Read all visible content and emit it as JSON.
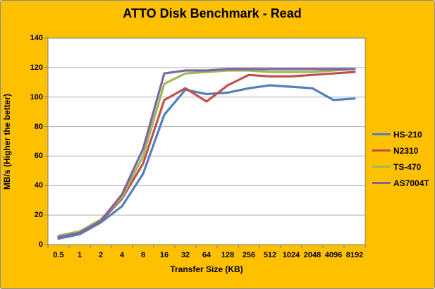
{
  "chart_data": {
    "type": "line",
    "title": "ATTO Disk Benchmark - Read",
    "xlabel": "Transfer Size (KB)",
    "ylabel": "MB/s (Higher the better)",
    "categories": [
      "0.5",
      "1",
      "2",
      "4",
      "8",
      "16",
      "32",
      "64",
      "128",
      "256",
      "512",
      "1024",
      "2048",
      "4096",
      "8192"
    ],
    "series": [
      {
        "name": "HS-210",
        "color": "#4F81BD",
        "values": [
          4,
          7,
          15,
          26,
          48,
          88,
          105,
          102,
          103,
          106,
          108,
          107,
          106,
          98,
          99
        ]
      },
      {
        "name": "N2310",
        "color": "#C0504D",
        "values": [
          5,
          8,
          16,
          31,
          55,
          98,
          106,
          97,
          108,
          115,
          114,
          114,
          115,
          116,
          117
        ]
      },
      {
        "name": "TS-470",
        "color": "#9BBB59",
        "values": [
          6,
          9,
          17,
          32,
          60,
          109,
          116,
          117,
          118,
          118,
          117,
          117,
          117,
          118,
          119
        ]
      },
      {
        "name": "AS7004T",
        "color": "#8064A2",
        "values": [
          5,
          8,
          16,
          34,
          65,
          116,
          118,
          118,
          119,
          119,
          119,
          119,
          119,
          119,
          119
        ]
      }
    ],
    "ylim": [
      0,
      140
    ],
    "y_ticks": [
      0,
      20,
      40,
      60,
      80,
      100,
      120,
      140
    ],
    "grid": "horizontal",
    "legend_position": "right",
    "colors": {
      "background": "#FFC000",
      "plot_background": "#FFFFFF",
      "gridline": "#ADADAD",
      "axis": "#7F7F7F",
      "outer_border": "#8C8C8C",
      "text": "#000000"
    }
  }
}
